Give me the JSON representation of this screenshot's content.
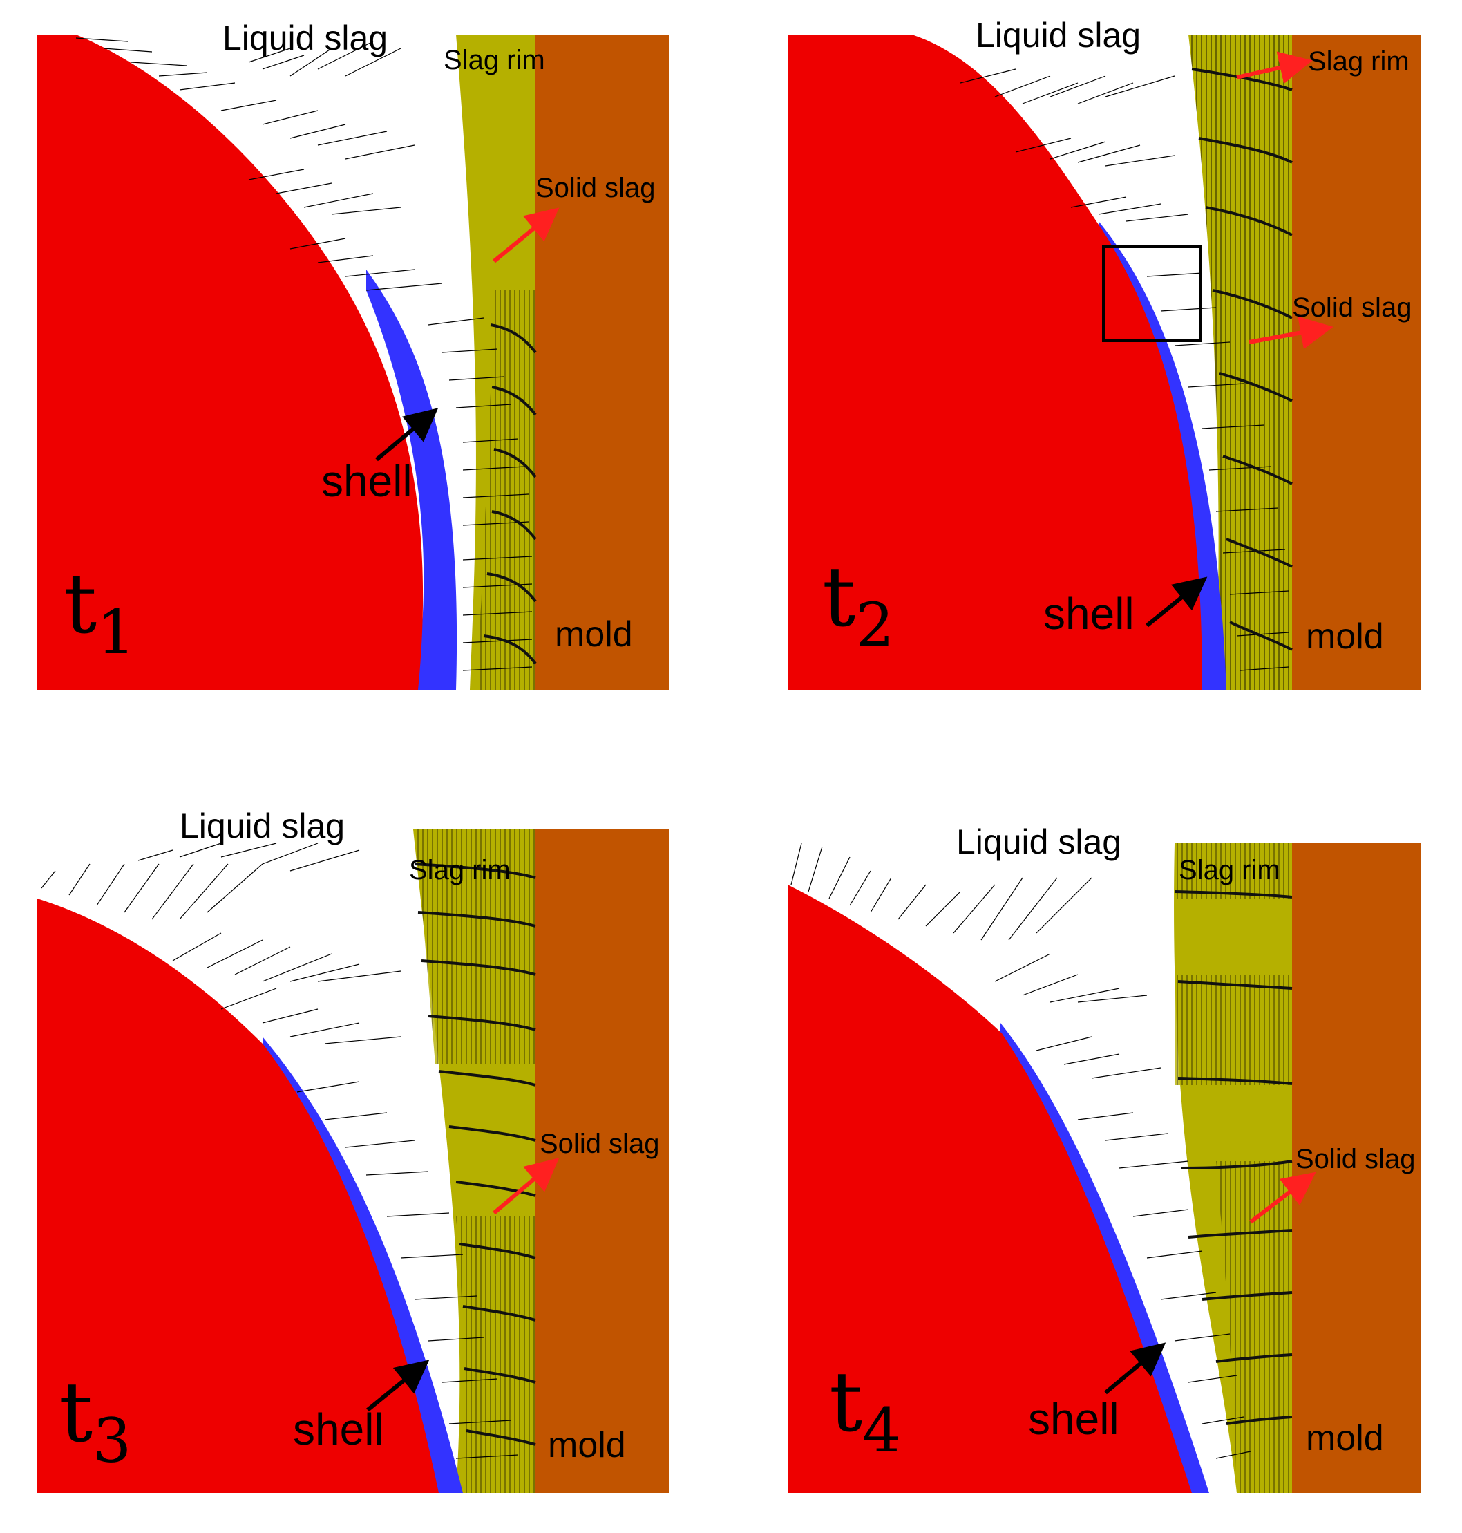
{
  "colors": {
    "steel": "#ee0000",
    "shell": "#3333ff",
    "slag_rim": "#b5b000",
    "mold": "#c15400",
    "liquid_slag": "#ffffff",
    "vector": "#000000",
    "pointer_red": "#ff2020",
    "pointer_black": "#000000"
  },
  "panels": [
    {
      "time_symbol": "t",
      "time_subscript": "1",
      "labels": {
        "liquid_slag": "Liquid slag",
        "slag_rim": "Slag rim",
        "solid_slag": "Solid slag",
        "shell": "shell",
        "mold": "mold"
      }
    },
    {
      "time_symbol": "t",
      "time_subscript": "2",
      "labels": {
        "liquid_slag": "Liquid slag",
        "slag_rim": "Slag rim",
        "solid_slag": "Solid slag",
        "shell": "shell",
        "mold": "mold"
      },
      "highlight_box": true
    },
    {
      "time_symbol": "t",
      "time_subscript": "3",
      "labels": {
        "liquid_slag": "Liquid slag",
        "slag_rim": "Slag rim",
        "solid_slag": "Solid slag",
        "shell": "shell",
        "mold": "mold"
      }
    },
    {
      "time_symbol": "t",
      "time_subscript": "4",
      "labels": {
        "liquid_slag": "Liquid slag",
        "slag_rim": "Slag rim",
        "solid_slag": "Solid slag",
        "shell": "shell",
        "mold": "mold"
      }
    }
  ]
}
